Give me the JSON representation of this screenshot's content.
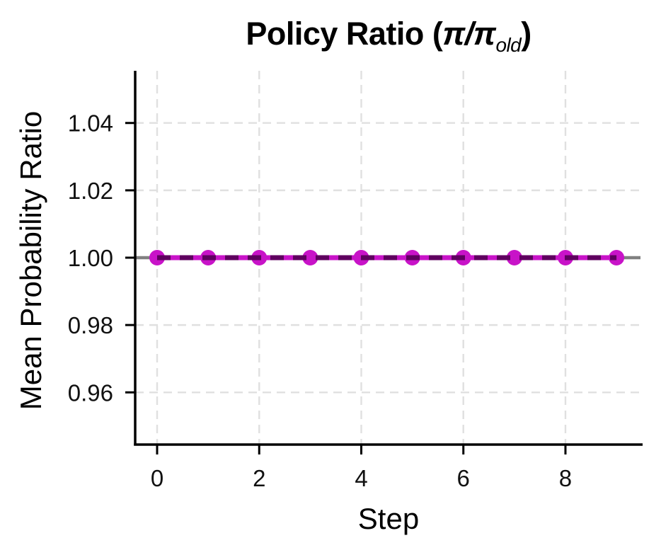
{
  "figure": {
    "title": {
      "prefix": "Policy Ratio (",
      "pi_expr": "π/π",
      "pi_subscript": "old",
      "suffix": ")"
    },
    "xlabel": "Step",
    "ylabel": "Mean Probability Ratio"
  },
  "chart_data": {
    "type": "line",
    "title": "Policy Ratio (π/π_old)",
    "xlabel": "Step",
    "ylabel": "Mean Probability Ratio",
    "x": [
      0,
      1,
      2,
      3,
      4,
      5,
      6,
      7,
      8,
      9
    ],
    "series": [
      {
        "name": "mean probability ratio",
        "values": [
          1.0,
          1.0,
          1.0,
          1.0,
          1.0,
          1.0,
          1.0,
          1.0,
          1.0,
          1.0
        ],
        "color": "#C813C8",
        "overlay_dash_color": "#5F005F",
        "marker": "circle",
        "line_style": "solid-with-dashed-overlay"
      }
    ],
    "reference_line": {
      "y": 1.0,
      "color": "#808080"
    },
    "xticks": [
      0,
      2,
      4,
      6,
      8
    ],
    "xtick_labels": [
      "0",
      "2",
      "4",
      "6",
      "8"
    ],
    "yticks": [
      0.96,
      0.98,
      1.0,
      1.02,
      1.04
    ],
    "ytick_labels": [
      "0.96",
      "0.98",
      "1.00",
      "1.02",
      "1.04"
    ],
    "xlim": [
      -0.43,
      9.47
    ],
    "ylim": [
      0.9445,
      1.0555
    ],
    "grid": true,
    "grid_color": "#E0E0E0",
    "legend_position": "none"
  },
  "colors": {
    "background": "#FFFFFF",
    "spine": "#000000",
    "tick_label": "#111111"
  }
}
